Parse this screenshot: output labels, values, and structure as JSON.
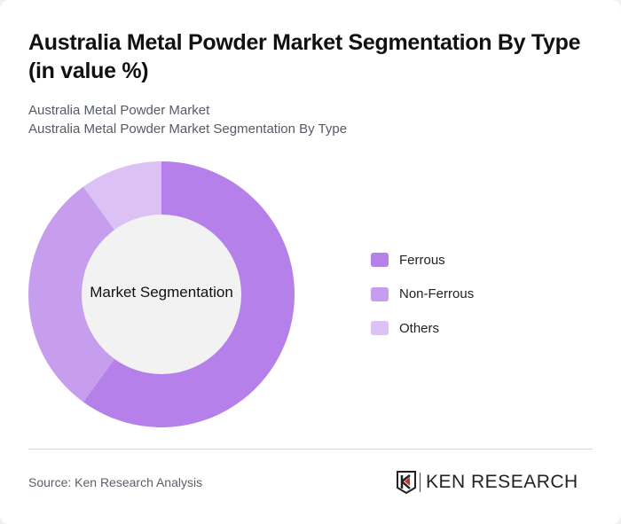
{
  "header": {
    "title": "Australia Metal Powder Market Segmentation By Type (in value %)",
    "subtitle_line1": "Australia Metal Powder Market",
    "subtitle_line2": "Australia Metal Powder Market Segmentation By Type"
  },
  "chart": {
    "center_label": "Market Segmentation"
  },
  "legend": {
    "items": [
      {
        "label": "Ferrous",
        "color": "#b580ea"
      },
      {
        "label": "Non-Ferrous",
        "color": "#c79ded"
      },
      {
        "label": "Others",
        "color": "#dcc1f5"
      }
    ]
  },
  "footer": {
    "source": "Source: Ken Research Analysis",
    "logo_text": "KEN RESEARCH"
  },
  "chart_data": {
    "type": "pie",
    "subtype": "donut",
    "title": "Australia Metal Powder Market Segmentation By Type (in value %)",
    "center_label": "Market Segmentation",
    "categories": [
      "Ferrous",
      "Non-Ferrous",
      "Others"
    ],
    "values": [
      60,
      30,
      10
    ],
    "colors": [
      "#b580ea",
      "#c79ded",
      "#dcc1f5"
    ],
    "legend_position": "right"
  }
}
